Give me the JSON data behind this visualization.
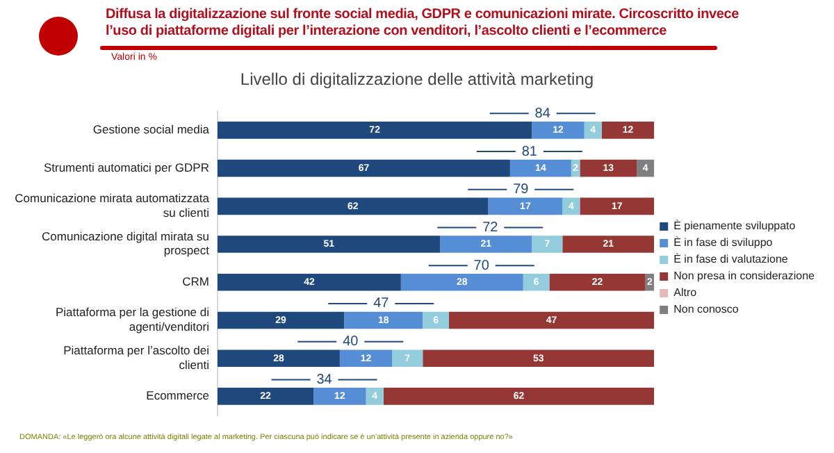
{
  "chart_data": {
    "type": "bar",
    "orientation": "horizontal",
    "stacked": true,
    "title": "Diffusa la digitalizzazione sul fronte social media, GDPR e comunicazioni mirate. Circoscritto invece l’uso di piattaforme digitali per l’interazione con venditori, l’ascolto clienti e l’ecommerce",
    "subtitle": "Livello di digitalizzazione delle attività marketing",
    "categories": [
      "Gestione social media",
      "Strumenti automatici per GDPR",
      "Comunicazione mirata automatizzata su clienti",
      "Comunicazione digital mirata su prospect",
      "CRM",
      "Piattaforma per la gestione di agenti/venditori",
      "Piattaforma per l’ascolto dei clienti",
      "Ecommerce"
    ],
    "series": [
      {
        "name": "È pienamente sviluppato",
        "color": "#1f497d",
        "values": [
          72,
          67,
          62,
          51,
          42,
          29,
          28,
          22
        ]
      },
      {
        "name": "È in fase di sviluppo",
        "color": "#558ed5",
        "values": [
          12,
          14,
          17,
          21,
          28,
          18,
          12,
          12
        ]
      },
      {
        "name": "È in fase di valutazione",
        "color": "#93cddd",
        "values": [
          4,
          2,
          4,
          7,
          6,
          6,
          7,
          4
        ]
      },
      {
        "name": "Non presa in considerazione",
        "color": "#953735",
        "values": [
          12,
          13,
          17,
          21,
          22,
          47,
          53,
          62
        ]
      },
      {
        "name": "Altro",
        "color": "#e6b9b8",
        "values": [
          null,
          null,
          null,
          null,
          null,
          null,
          null,
          null
        ]
      },
      {
        "name": "Non conosco",
        "color": "#7f7f7f",
        "values": [
          null,
          4,
          null,
          null,
          2,
          null,
          null,
          null
        ]
      }
    ],
    "xlim": [
      0,
      100
    ],
    "tick_labels": "y",
    "grid": false,
    "legend": "right",
    "data_labels": true,
    "annotations": [
      {
        "text": "84",
        "x": 84,
        "y": "Gestione social media"
      },
      {
        "text": "81",
        "x": 81,
        "y": "Strumenti automatici per GDPR"
      },
      {
        "text": "79",
        "x": 79,
        "y": "Comunicazione mirata automatizzata su clienti"
      },
      {
        "text": "72",
        "x": 72,
        "y": "Comunicazione digital mirata su prospect"
      },
      {
        "text": "70",
        "x": 70,
        "y": "CRM"
      },
      {
        "text": "47",
        "x": 47,
        "y": "Piattaforma per la gestione di agenti/venditori"
      },
      {
        "text": "40",
        "x": 40,
        "y": "Piattaforma per l’ascolto dei clienti"
      },
      {
        "text": "34",
        "x": 34,
        "y": "Ecommerce"
      },
      "Valori in %",
      "DOMANDA: «Le leggerò ora alcune attività digitali legate al marketing. Per ciascuna può indicare se è un’attività presente in azienda oppure no?»"
    ]
  }
}
